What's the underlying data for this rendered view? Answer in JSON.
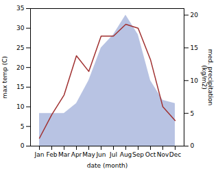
{
  "chart_data": {
    "type": "line",
    "categories": [
      "Jan",
      "Feb",
      "Mar",
      "Apr",
      "May",
      "Jun",
      "Jul",
      "Aug",
      "Sep",
      "Oct",
      "Nov",
      "Dec"
    ],
    "series": [
      {
        "type": "area",
        "axis": "y2",
        "color": "#b0bce0",
        "values": [
          5.0,
          5.0,
          5.0,
          6.5,
          10.0,
          15.0,
          17.0,
          20.0,
          17.0,
          10.0,
          7.0,
          6.5
        ]
      },
      {
        "type": "line",
        "color": "#a03030",
        "values": [
          2.0,
          8.0,
          13.0,
          23.0,
          19.0,
          28.0,
          28.0,
          31.0,
          30.0,
          22.0,
          10.0,
          6.5
        ]
      }
    ],
    "xlabel": "date (month)",
    "ylabel": "max temp (C)",
    "y2label": "med. precipitation\n(kg/m2)",
    "ylim": [
      0,
      35
    ],
    "yticks": [
      0,
      5,
      10,
      15,
      20,
      25,
      30,
      35
    ],
    "y2lim": [
      0,
      21
    ],
    "y2ticks": [
      0,
      5,
      10,
      15,
      20
    ],
    "grid": false
  }
}
